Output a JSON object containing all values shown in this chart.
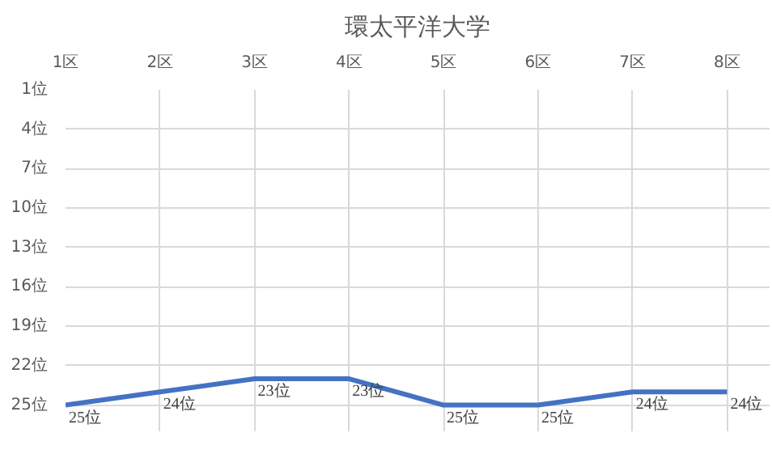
{
  "chart_data": {
    "type": "line",
    "title": "環太平洋大学",
    "categories": [
      "1区",
      "2区",
      "3区",
      "4区",
      "5区",
      "6区",
      "7区",
      "8区"
    ],
    "series": [
      {
        "color": "#4472c4",
        "values": [
          25,
          24,
          23,
          23,
          25,
          25,
          24,
          24
        ],
        "value_labels": [
          "25位",
          "24位",
          "23位",
          "23位",
          "25位",
          "25位",
          "24位",
          "24位"
        ]
      }
    ],
    "ylim": [
      27,
      1
    ],
    "yticks": [
      {
        "value": 1,
        "label": "1位"
      },
      {
        "value": 4,
        "label": "4位"
      },
      {
        "value": 7,
        "label": "7位"
      },
      {
        "value": 10,
        "label": "10位"
      },
      {
        "value": 13,
        "label": "13位"
      },
      {
        "value": 16,
        "label": "16位"
      },
      {
        "value": 19,
        "label": "19位"
      },
      {
        "value": 22,
        "label": "22位"
      },
      {
        "value": 25,
        "label": "25位"
      }
    ],
    "grid": true,
    "marker": "none",
    "line_style": "solid"
  }
}
